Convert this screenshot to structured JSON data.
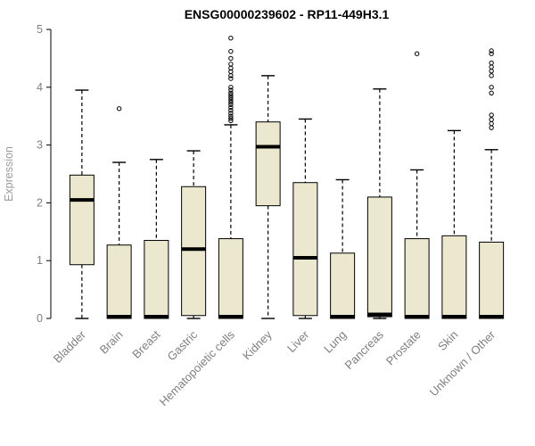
{
  "chart_data": {
    "type": "boxplot",
    "title": "ENSG00000239602 - RP11-449H3.1",
    "ylabel": "Expression",
    "xlabel": "",
    "ylim": [
      0,
      5
    ],
    "yticks": [
      0,
      1,
      2,
      3,
      4,
      5
    ],
    "grid": false,
    "legend": false,
    "categories": [
      "Bladder",
      "Brain",
      "Breast",
      "Gastric",
      "Hematopoietic cells",
      "Kidney",
      "Liver",
      "Lung",
      "Pancreas",
      "Prostate",
      "Skin",
      "Unknown / Other"
    ],
    "series": [
      {
        "name": "Bladder",
        "low": 0,
        "q1": 0.93,
        "median": 2.05,
        "q3": 2.48,
        "high": 3.95,
        "outliers": []
      },
      {
        "name": "Brain",
        "low": 0,
        "q1": 0.0,
        "median": 0.03,
        "q3": 1.27,
        "high": 2.7,
        "outliers": [
          3.63
        ]
      },
      {
        "name": "Breast",
        "low": 0,
        "q1": 0.0,
        "median": 0.03,
        "q3": 1.35,
        "high": 2.75,
        "outliers": []
      },
      {
        "name": "Gastric",
        "low": 0,
        "q1": 0.05,
        "median": 1.2,
        "q3": 2.28,
        "high": 2.9,
        "outliers": []
      },
      {
        "name": "Hematopoietic cells",
        "low": 0,
        "q1": 0.0,
        "median": 0.03,
        "q3": 1.38,
        "high": 3.35,
        "outliers": [
          3.42,
          3.46,
          3.5,
          3.55,
          3.6,
          3.65,
          3.7,
          3.74,
          3.78,
          3.82,
          3.86,
          3.9,
          3.95,
          4.0,
          4.15,
          4.2,
          4.27,
          4.33,
          4.4,
          4.5,
          4.62,
          4.85
        ]
      },
      {
        "name": "Kidney",
        "low": 0,
        "q1": 1.95,
        "median": 2.97,
        "q3": 3.4,
        "high": 4.2,
        "outliers": []
      },
      {
        "name": "Liver",
        "low": 0,
        "q1": 0.05,
        "median": 1.05,
        "q3": 2.35,
        "high": 3.45,
        "outliers": []
      },
      {
        "name": "Lung",
        "low": 0,
        "q1": 0.0,
        "median": 0.03,
        "q3": 1.13,
        "high": 2.4,
        "outliers": []
      },
      {
        "name": "Pancreas",
        "low": 0,
        "q1": 0.03,
        "median": 0.07,
        "q3": 2.1,
        "high": 3.97,
        "outliers": []
      },
      {
        "name": "Prostate",
        "low": 0,
        "q1": 0.0,
        "median": 0.03,
        "q3": 1.38,
        "high": 2.57,
        "outliers": [
          4.58
        ]
      },
      {
        "name": "Skin",
        "low": 0,
        "q1": 0.0,
        "median": 0.03,
        "q3": 1.43,
        "high": 3.25,
        "outliers": []
      },
      {
        "name": "Unknown / Other",
        "low": 0,
        "q1": 0.0,
        "median": 0.03,
        "q3": 1.32,
        "high": 2.92,
        "outliers": [
          3.3,
          3.37,
          3.44,
          3.52,
          3.9,
          4.0,
          4.2,
          4.28,
          4.35,
          4.42,
          4.58,
          4.63
        ]
      }
    ],
    "colors": {
      "box_fill": "#ece7cf",
      "line": "#000000",
      "tick_label": "#7f7f7f",
      "axis_title": "#9a9a9a",
      "title": "#000000",
      "background": "#ffffff"
    }
  }
}
